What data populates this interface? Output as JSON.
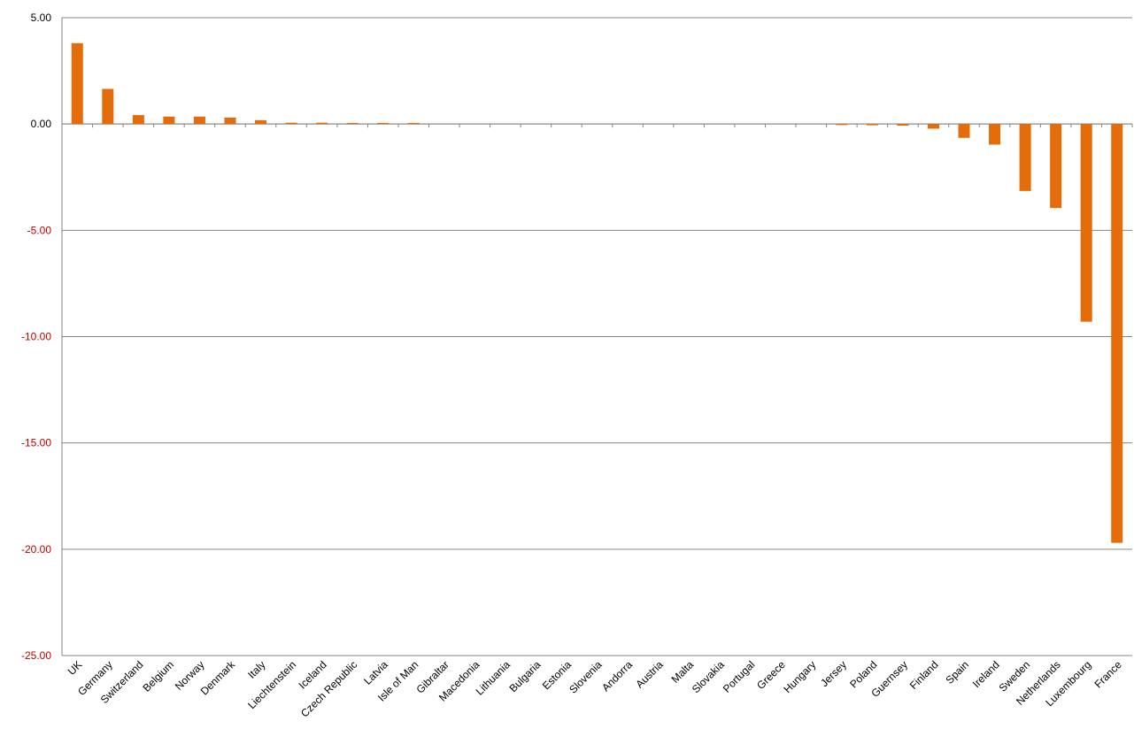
{
  "chart_data": {
    "type": "bar",
    "title": "",
    "xlabel": "",
    "ylabel": "",
    "ylim": [
      -25,
      5
    ],
    "yticks": [
      5,
      0,
      -5,
      -10,
      -15,
      -20,
      -25
    ],
    "ytick_labels": [
      "5.00",
      "0.00",
      "-5.00",
      "-10.00",
      "-15.00",
      "-20.00",
      "-25.00"
    ],
    "grid": "horizontal",
    "legend": "none",
    "categories": [
      "UK",
      "Germany",
      "Switzerland",
      "Belgium",
      "Norway",
      "Denmark",
      "Italy",
      "Liechtenstein",
      "Iceland",
      "Czech Republic",
      "Latvia",
      "Isle of Man",
      "Gibraltar",
      "Macedonia",
      "Lithuania",
      "Bulgaria",
      "Estonia",
      "Slovenia",
      "Andorra",
      "Austria",
      "Malta",
      "Slovakia",
      "Portugal",
      "Greece",
      "Hungary",
      "Jersey",
      "Poland",
      "Guernsey",
      "Finland",
      "Spain",
      "Ireland",
      "Sweden",
      "Netherlands",
      "Luxembourg",
      "France"
    ],
    "values": [
      3.8,
      1.65,
      0.42,
      0.35,
      0.35,
      0.3,
      0.18,
      0.06,
      0.06,
      0.05,
      0.05,
      0.05,
      0.0,
      0.0,
      0.0,
      0.0,
      0.0,
      0.0,
      0.0,
      0.0,
      0.0,
      0.0,
      0.0,
      0.0,
      0.0,
      -0.05,
      -0.06,
      -0.08,
      -0.22,
      -0.65,
      -0.97,
      -3.15,
      -3.95,
      -9.3,
      -19.7
    ],
    "colors": {
      "bar": "#e46c0a",
      "negative_tick_label": "#c00000",
      "positive_tick_label": "#000000",
      "grid": "#868686"
    }
  }
}
